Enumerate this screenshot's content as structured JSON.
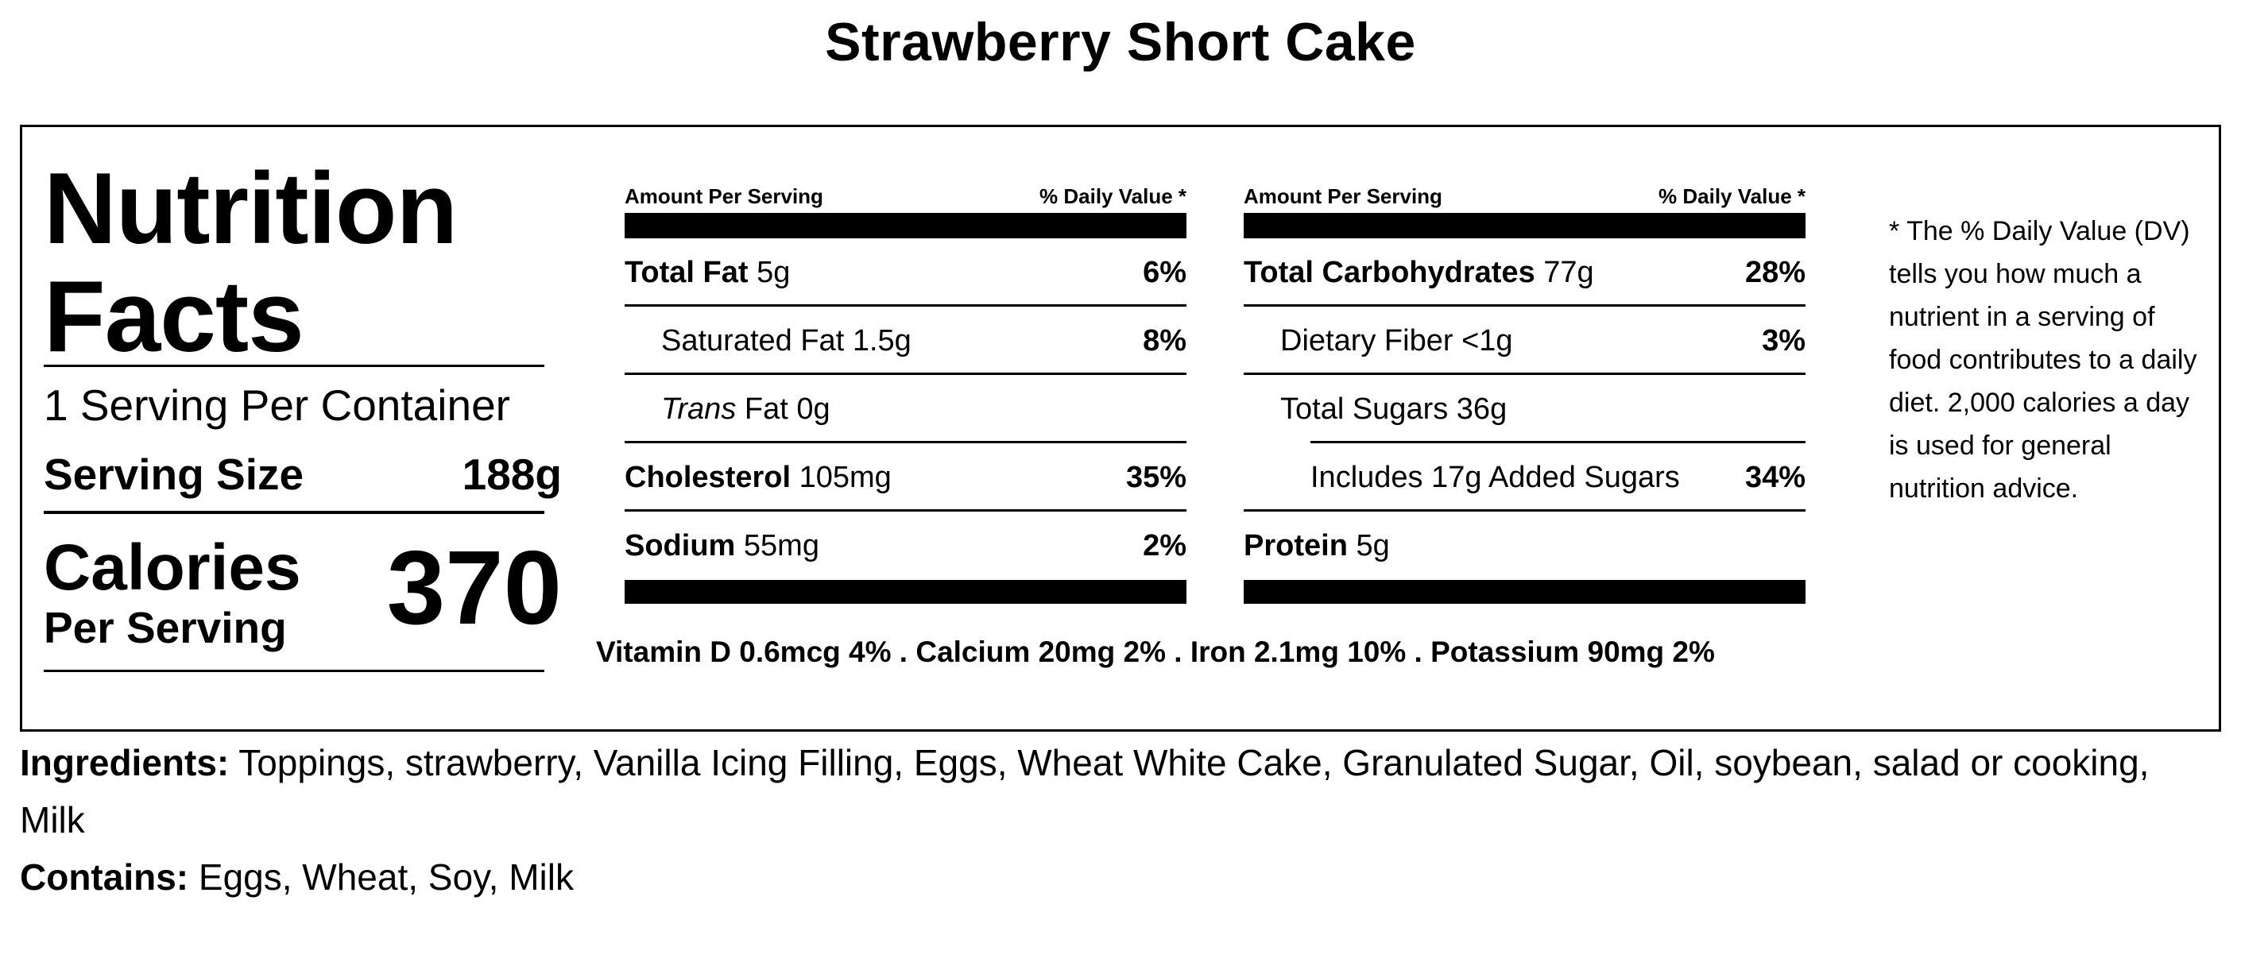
{
  "title": "Strawberry Short Cake",
  "label": {
    "heading_line1": "Nutrition",
    "heading_line2": "Facts",
    "servings_per_container": "1 Serving Per Container",
    "serving_size_label": "Serving Size",
    "serving_size_value": "188g",
    "calories_label": "Calories",
    "calories_sub": "Per Serving",
    "calories_value": "370"
  },
  "table_left": {
    "header_left": "Amount Per Serving",
    "header_right": "% Daily Value *",
    "rows": [
      {
        "name": "Total Fat",
        "amount": "5g",
        "pct": "6%"
      },
      {
        "name": "Saturated Fat",
        "amount": "1.5g",
        "pct": "8%"
      },
      {
        "name_italic": "Trans",
        "name": "Fat",
        "amount": "0g",
        "pct": ""
      },
      {
        "name": "Cholesterol",
        "amount": "105mg",
        "pct": "35%"
      },
      {
        "name": "Sodium",
        "amount": "55mg",
        "pct": "2%"
      }
    ]
  },
  "table_right": {
    "header_left": "Amount Per Serving",
    "header_right": "% Daily Value *",
    "rows": [
      {
        "name": "Total Carbohydrates",
        "amount": "77g",
        "pct": "28%"
      },
      {
        "name": "Dietary Fiber",
        "amount": "<1g",
        "pct": "3%"
      },
      {
        "name": "Total Sugars",
        "amount": "36g",
        "pct": ""
      },
      {
        "name": "Includes 17g Added Sugars",
        "amount": "",
        "pct": "34%"
      },
      {
        "name": "Protein",
        "amount": "5g",
        "pct": ""
      }
    ]
  },
  "vitamins": "Vitamin D 0.6mcg 4% . Calcium 20mg 2% . Iron 2.1mg 10% . Potassium 90mg 2%",
  "footnote": "* The % Daily Value (DV) tells you how much a nutrient in a serving of food contributes to a daily diet. 2,000 calories a day is used for general nutrition advice.",
  "ingredients": {
    "label": "Ingredients:",
    "text": "Toppings, strawberry, Vanilla Icing Filling, Eggs, Wheat White Cake, Granulated Sugar, Oil, soybean, salad or cooking, Milk"
  },
  "contains": {
    "label": "Contains:",
    "text": "Eggs, Wheat, Soy, Milk"
  }
}
